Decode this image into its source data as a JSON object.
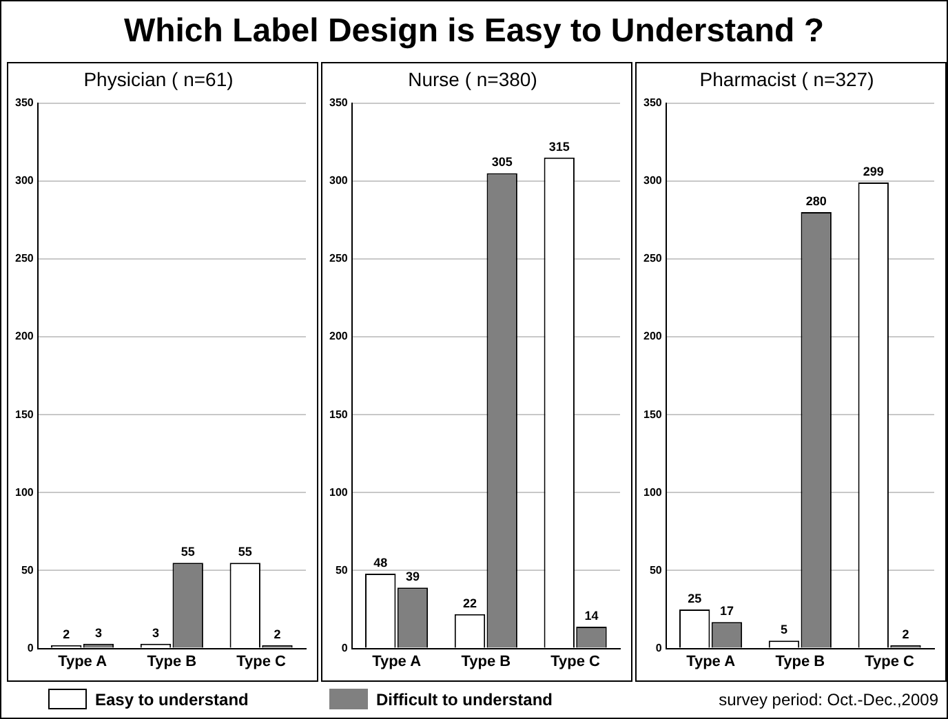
{
  "chart_data": [
    {
      "type": "bar",
      "title": "Which Label Design is Easy to Understand ?",
      "subtitle": "Physician ( n=61)",
      "categories": [
        "Type A",
        "Type B",
        "Type C"
      ],
      "series": [
        {
          "name": "Easy to understand",
          "color": "#ffffff",
          "values": [
            2,
            3,
            55
          ]
        },
        {
          "name": "Difficult  to understand",
          "color": "#808080",
          "values": [
            3,
            55,
            2
          ]
        }
      ],
      "ylim": [
        0,
        350
      ],
      "yticks": [
        0,
        50,
        100,
        150,
        200,
        250,
        300,
        350
      ],
      "grid": "y",
      "data_labels": true,
      "legend": "bottom"
    },
    {
      "type": "bar",
      "title": "Nurse ( n=380)",
      "categories": [
        "Type A",
        "Type B",
        "Type C"
      ],
      "series": [
        {
          "color": "#ffffff",
          "values": [
            48,
            22,
            315
          ]
        },
        {
          "color": "#808080",
          "values": [
            39,
            305,
            14
          ]
        }
      ],
      "ylim": [
        0,
        350
      ],
      "yticks": [
        0,
        50,
        100,
        150,
        200,
        250,
        300,
        350
      ],
      "grid": "y",
      "data_labels": true
    },
    {
      "type": "bar",
      "title": "Pharmacist ( n=327)",
      "categories": [
        "Type A",
        "Type B",
        "Type C"
      ],
      "series": [
        {
          "color": "#ffffff",
          "values": [
            25,
            5,
            299
          ]
        },
        {
          "color": "#808080",
          "values": [
            17,
            280,
            2
          ]
        }
      ],
      "ylim": [
        0,
        350
      ],
      "yticks": [
        0,
        50,
        100,
        150,
        200,
        250,
        300,
        350
      ],
      "grid": "y",
      "data_labels": true,
      "annotations": [
        "survey period: Oct.-Dec.,2009"
      ]
    }
  ]
}
